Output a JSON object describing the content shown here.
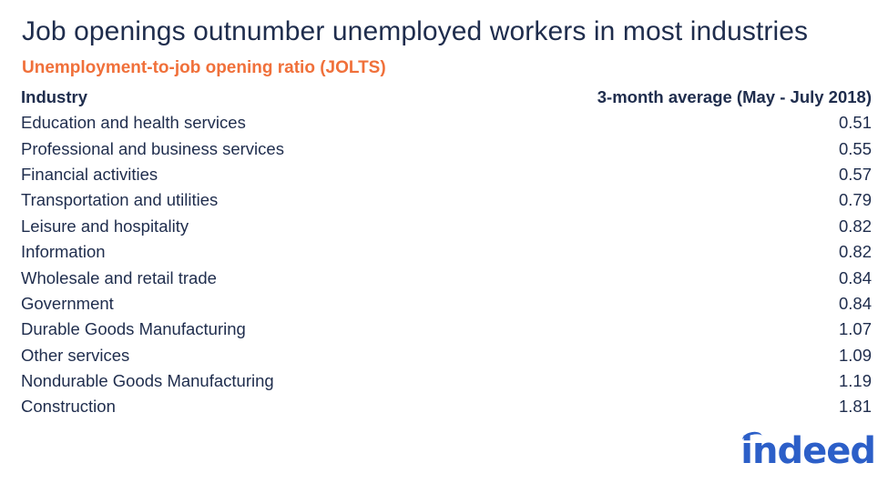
{
  "title": "Job openings outnumber unemployed workers in most industries",
  "subtitle": "Unemployment-to-job opening ratio (JOLTS)",
  "logo_text": "indeed",
  "colors": {
    "title": "#1f2d4d",
    "subtitle": "#f0703a",
    "logo": "#2c5fc8"
  },
  "chart_data": {
    "type": "table",
    "columns": [
      "Industry",
      "3-month average (May - July 2018)"
    ],
    "rows": [
      [
        "Education and health services",
        "0.51"
      ],
      [
        "Professional and business services",
        "0.55"
      ],
      [
        "Financial activities",
        "0.57"
      ],
      [
        "Transportation and utilities",
        "0.79"
      ],
      [
        "Leisure and hospitality",
        "0.82"
      ],
      [
        "Information",
        "0.82"
      ],
      [
        "Wholesale and retail trade",
        "0.84"
      ],
      [
        "Government",
        "0.84"
      ],
      [
        "Durable Goods Manufacturing",
        "1.07"
      ],
      [
        "Other services",
        "1.09"
      ],
      [
        "Nondurable Goods Manufacturing",
        "1.19"
      ],
      [
        "Construction",
        "1.81"
      ]
    ]
  }
}
